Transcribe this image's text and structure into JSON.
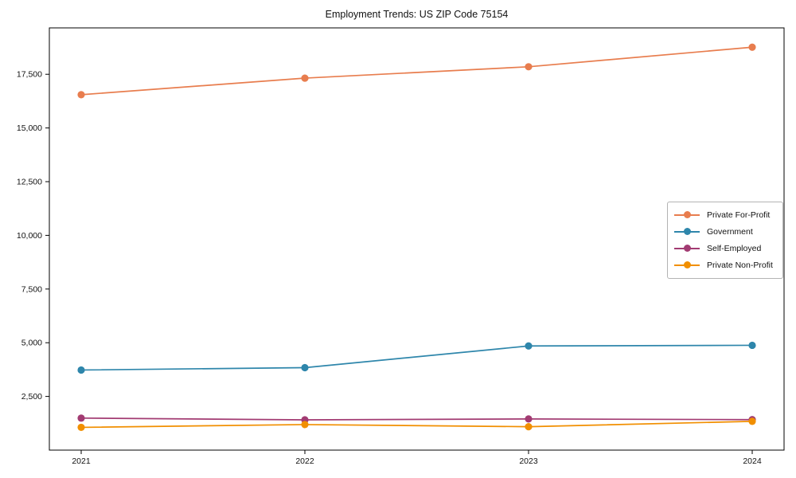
{
  "figure": {
    "background": "#ffffff",
    "axes_border_color": "#000000",
    "tick_color": "#000000",
    "tick_label_color": "#111111",
    "title_color": "#111111"
  },
  "legend": {
    "border_color": "#b3b3b3",
    "background": "#ffffff"
  },
  "chart_data": {
    "type": "line",
    "title": "Employment Trends: US ZIP Code 75154",
    "xlabel": "",
    "ylabel": "",
    "categories": [
      "2021",
      "2022",
      "2023",
      "2024"
    ],
    "series": [
      {
        "name": "Private For-Profit",
        "color": "#E87D4E",
        "values": [
          16550,
          17320,
          17850,
          18760
        ]
      },
      {
        "name": "Government",
        "color": "#2E86AB",
        "values": [
          3730,
          3840,
          4850,
          4880
        ]
      },
      {
        "name": "Self-Employed",
        "color": "#A23B72",
        "values": [
          1490,
          1410,
          1450,
          1420
        ]
      },
      {
        "name": "Private Non-Profit",
        "color": "#F18F01",
        "values": [
          1060,
          1190,
          1090,
          1340
        ]
      }
    ],
    "ylim": [
      0,
      19660
    ],
    "yticks": [
      {
        "value": 2500,
        "label": "2,500"
      },
      {
        "value": 5000,
        "label": "5,000"
      },
      {
        "value": 7500,
        "label": "7,500"
      },
      {
        "value": 10000,
        "label": "10,000"
      },
      {
        "value": 12500,
        "label": "12,500"
      },
      {
        "value": 15000,
        "label": "15,000"
      },
      {
        "value": 17500,
        "label": "17,500"
      }
    ],
    "legend_position": "center right",
    "grid": false,
    "marker": "o"
  }
}
